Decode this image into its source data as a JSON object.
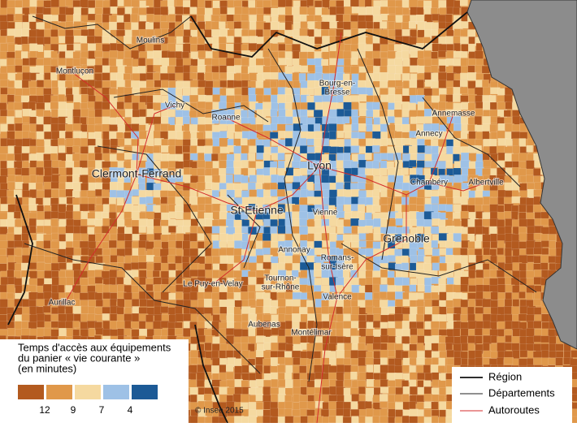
{
  "places": [
    [
      "Moulins"
    ],
    [
      "Montluçon"
    ],
    [
      "Vichy"
    ],
    [
      "Roanne"
    ],
    [
      "Clermont-Ferrand"
    ],
    [
      "St-Etienne"
    ],
    [
      "Lyon"
    ],
    [
      "Bourg-en-",
      "Bresse"
    ],
    [
      "Annemasse"
    ],
    [
      "Annecy"
    ],
    [
      "Chambéry"
    ],
    [
      "Albertville"
    ],
    [
      "Vienne"
    ],
    [
      "Grenoble"
    ],
    [
      "Annonay"
    ],
    [
      "Romans-",
      "sur-Isère"
    ],
    [
      "Tournon-",
      "sur-Rhône"
    ],
    [
      "Le Puy-en-Velay"
    ],
    [
      "Valence"
    ],
    [
      "Aurillac"
    ],
    [
      "Aubenas"
    ],
    [
      "Montélimar"
    ]
  ],
  "legend": {
    "title": [
      "Temps d'accès aux équipements",
      "du panier « vie courante »",
      "(en minutes)"
    ],
    "colors": [
      "#b35a1f",
      "#e0984a",
      "#f5d9a0",
      "#9ec1e6",
      "#1c5a96"
    ],
    "ticks": [
      12,
      9,
      7,
      4
    ]
  },
  "line_legend": [
    "Région",
    "Départements",
    "Autoroutes"
  ],
  "credit": "© Insee 2015"
}
